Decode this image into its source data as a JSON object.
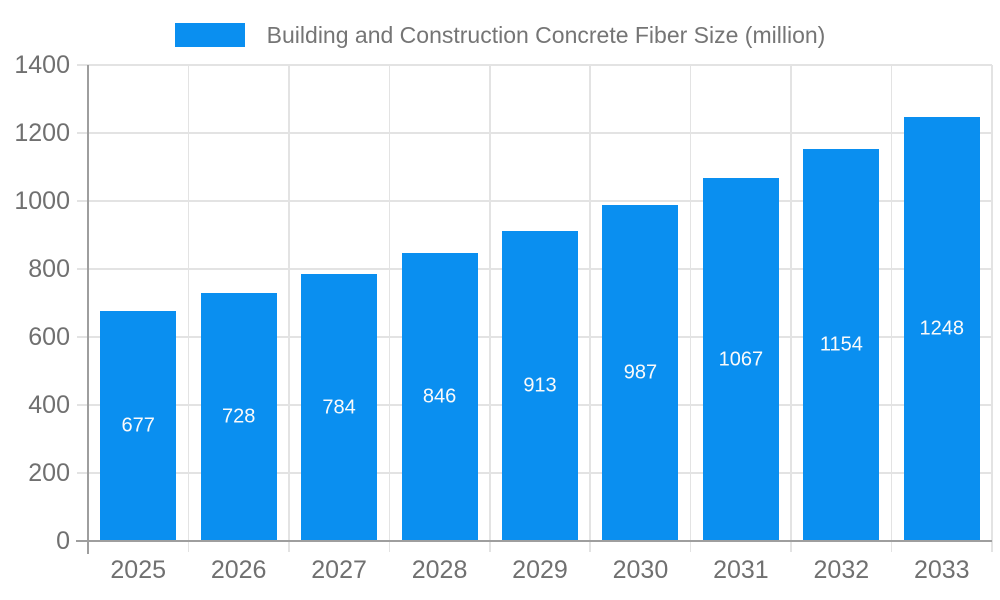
{
  "legend": {
    "label": "Building and Construction Concrete Fiber Size (million)"
  },
  "chart_data": {
    "type": "bar",
    "title": "Building and Construction Concrete Fiber Size (million)",
    "categories": [
      "2025",
      "2026",
      "2027",
      "2028",
      "2029",
      "2030",
      "2031",
      "2032",
      "2033"
    ],
    "values": [
      677,
      728,
      784,
      846,
      913,
      987,
      1067,
      1154,
      1248
    ],
    "xlabel": "",
    "ylabel": "",
    "ylim": [
      0,
      1400
    ],
    "yticks": [
      0,
      200,
      400,
      600,
      800,
      1000,
      1200,
      1400
    ],
    "grid": true,
    "legend_position": "top-center",
    "value_labels": "inside-center",
    "colors": {
      "bar": "#0a8ff0",
      "value_label": "#fafafa",
      "axis_line": "#9e9e9e",
      "grid_line": "#e3e3e3",
      "tick_label": "#707070",
      "title_text": "#757575"
    }
  }
}
